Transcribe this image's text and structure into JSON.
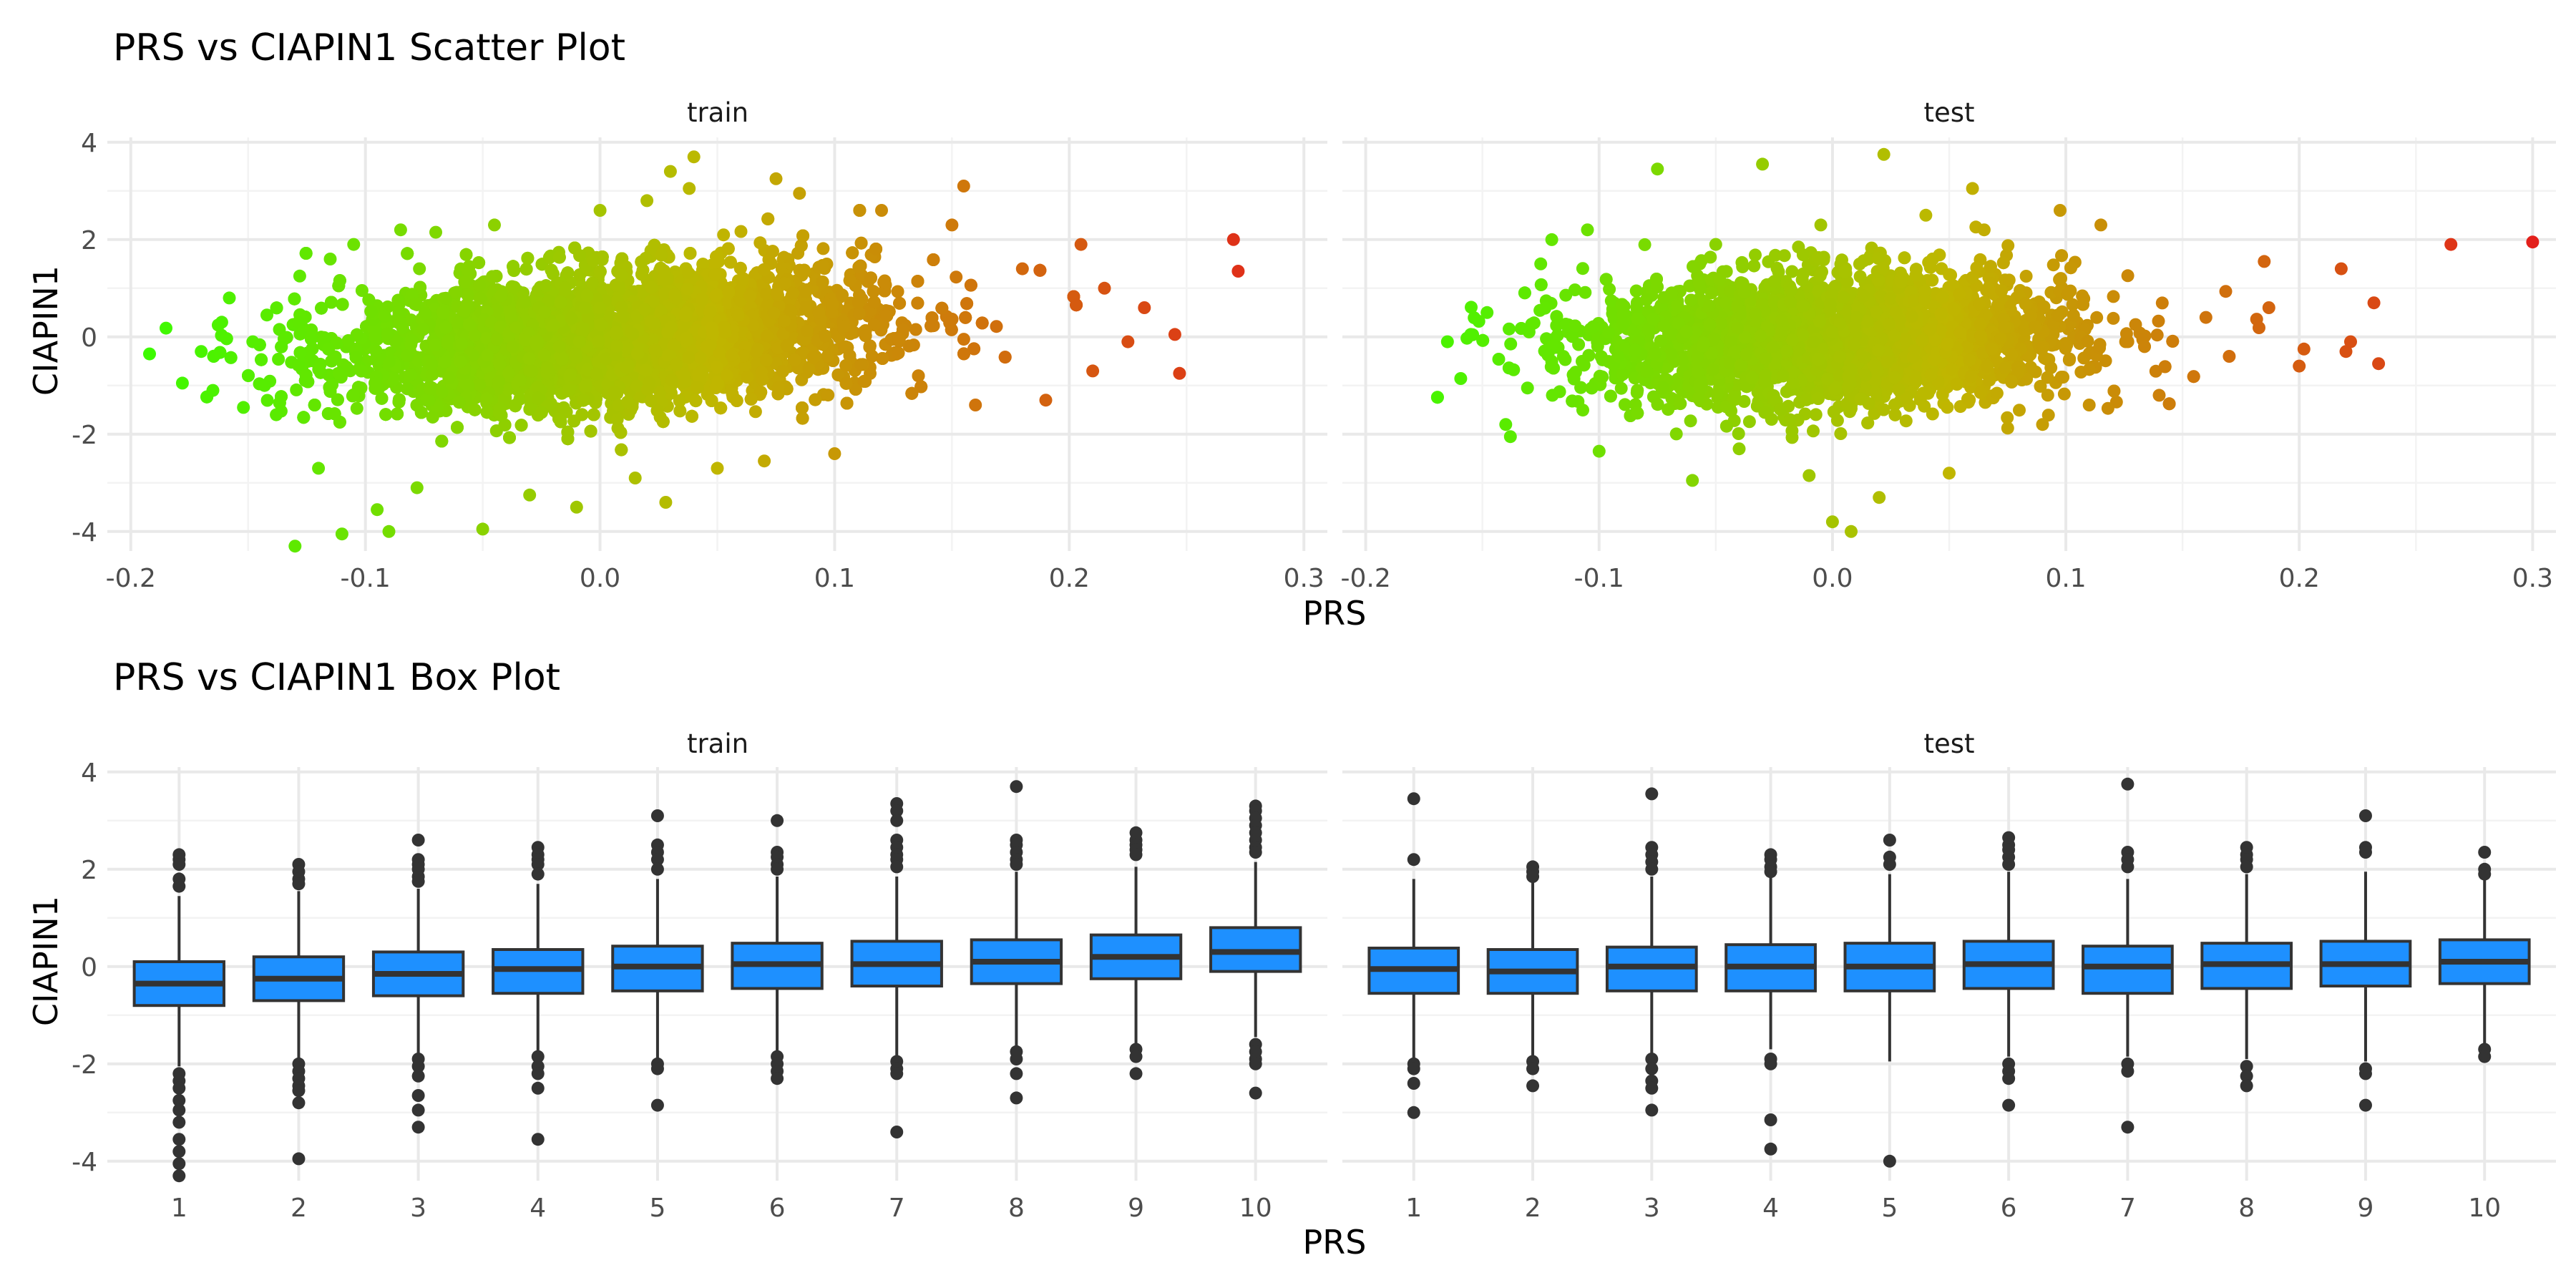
{
  "chart_data": [
    {
      "type": "scatter",
      "title": "PRS vs CIAPIN1 Scatter Plot",
      "xlabel": "PRS",
      "ylabel": "CIAPIN1",
      "facets": [
        "train",
        "test"
      ],
      "xlim": [
        -0.21,
        0.31
      ],
      "ylim": [
        -4.4,
        4.1
      ],
      "x_ticks": [
        -0.2,
        -0.1,
        0.0,
        0.1,
        0.2,
        0.3
      ],
      "x_tick_labels": [
        "-0.2",
        "-0.1",
        "0.0",
        "0.1",
        "0.2",
        "0.3"
      ],
      "y_ticks": [
        -4,
        -2,
        0,
        2,
        4
      ],
      "y_tick_labels": [
        "-4",
        "-2",
        "0",
        "2",
        "4"
      ],
      "color_scale": {
        "low": "#33ff00",
        "mid": "#c0b600",
        "high": "#e41a1c",
        "mapped_to": "PRS"
      },
      "grid": true,
      "legend": "none",
      "points": {
        "train": [
          [
            -0.192,
            -0.35
          ],
          [
            -0.185,
            0.18
          ],
          [
            -0.178,
            -0.95
          ],
          [
            -0.17,
            -0.3
          ],
          [
            -0.165,
            -1.1
          ],
          [
            -0.158,
            0.8
          ],
          [
            -0.152,
            -1.45
          ],
          [
            -0.148,
            -0.1
          ],
          [
            -0.142,
            0.45
          ],
          [
            -0.138,
            -1.6
          ],
          [
            -0.13,
            -4.3
          ],
          [
            -0.128,
            1.25
          ],
          [
            -0.12,
            -2.7
          ],
          [
            -0.115,
            1.6
          ],
          [
            -0.11,
            -4.05
          ],
          [
            -0.105,
            1.9
          ],
          [
            -0.095,
            -3.55
          ],
          [
            -0.09,
            -4.0
          ],
          [
            -0.085,
            2.2
          ],
          [
            -0.078,
            -3.1
          ],
          [
            -0.07,
            2.15
          ],
          [
            -0.05,
            -3.95
          ],
          [
            -0.045,
            2.3
          ],
          [
            -0.03,
            -3.25
          ],
          [
            -0.01,
            -3.5
          ],
          [
            0.0,
            2.6
          ],
          [
            0.015,
            -2.9
          ],
          [
            0.02,
            2.8
          ],
          [
            0.028,
            -3.4
          ],
          [
            0.03,
            3.4
          ],
          [
            0.038,
            3.05
          ],
          [
            0.04,
            3.7
          ],
          [
            0.05,
            -2.7
          ],
          [
            0.07,
            -2.55
          ],
          [
            0.075,
            3.25
          ],
          [
            0.085,
            2.95
          ],
          [
            0.1,
            -2.4
          ],
          [
            0.12,
            2.6
          ],
          [
            0.15,
            2.3
          ],
          [
            0.155,
            3.1
          ],
          [
            0.16,
            -1.4
          ],
          [
            0.18,
            1.4
          ],
          [
            0.19,
            -1.3
          ],
          [
            0.205,
            1.9
          ],
          [
            0.21,
            -0.7
          ],
          [
            0.215,
            1.0
          ],
          [
            0.225,
            -0.1
          ],
          [
            0.232,
            0.6
          ],
          [
            0.245,
            0.05
          ],
          [
            0.247,
            -0.75
          ],
          [
            0.27,
            2.0
          ],
          [
            0.272,
            1.35
          ]
        ],
        "test": [
          [
            -0.165,
            -0.1
          ],
          [
            -0.155,
            0.05
          ],
          [
            -0.148,
            0.5
          ],
          [
            -0.14,
            -1.8
          ],
          [
            -0.138,
            -2.05
          ],
          [
            -0.125,
            1.5
          ],
          [
            -0.12,
            -1.2
          ],
          [
            -0.105,
            2.2
          ],
          [
            -0.1,
            -2.35
          ],
          [
            -0.075,
            3.45
          ],
          [
            -0.06,
            -2.95
          ],
          [
            -0.05,
            1.9
          ],
          [
            -0.04,
            -2.3
          ],
          [
            -0.03,
            3.55
          ],
          [
            -0.01,
            -2.85
          ],
          [
            -0.005,
            2.3
          ],
          [
            0.0,
            -3.8
          ],
          [
            0.008,
            -4.0
          ],
          [
            0.02,
            -3.3
          ],
          [
            0.022,
            3.75
          ],
          [
            0.04,
            2.5
          ],
          [
            0.05,
            -2.8
          ],
          [
            0.06,
            3.05
          ],
          [
            0.065,
            2.2
          ],
          [
            0.09,
            -1.8
          ],
          [
            0.11,
            -1.4
          ],
          [
            0.115,
            2.3
          ],
          [
            0.14,
            -1.2
          ],
          [
            0.16,
            0.4
          ],
          [
            0.17,
            -0.4
          ],
          [
            0.185,
            1.55
          ],
          [
            0.187,
            0.6
          ],
          [
            0.2,
            -0.6
          ],
          [
            0.202,
            -0.25
          ],
          [
            0.218,
            1.4
          ],
          [
            0.22,
            -0.3
          ],
          [
            0.222,
            -0.1
          ],
          [
            0.232,
            0.7
          ],
          [
            0.234,
            -0.55
          ],
          [
            0.265,
            1.9
          ],
          [
            0.3,
            1.95
          ]
        ]
      },
      "bulk": {
        "train": {
          "n": 8000,
          "x_center": 0.005,
          "x_sd": 0.065,
          "y_intercept": -0.05,
          "y_slope": 3.2,
          "y_sd": 0.8
        },
        "test": {
          "n": 3400,
          "x_center": 0.0,
          "x_sd": 0.06,
          "y_intercept": -0.05,
          "y_slope": 1.0,
          "y_sd": 0.8
        }
      }
    },
    {
      "type": "box",
      "title": "PRS vs CIAPIN1 Box Plot",
      "xlabel": "PRS",
      "ylabel": "CIAPIN1",
      "facets": [
        "train",
        "test"
      ],
      "categories": [
        "1",
        "2",
        "3",
        "4",
        "5",
        "6",
        "7",
        "8",
        "9",
        "10"
      ],
      "ylim": [
        -4.4,
        4.1
      ],
      "y_ticks": [
        -4,
        -2,
        0,
        2,
        4
      ],
      "y_tick_labels": [
        "-4",
        "-2",
        "0",
        "2",
        "4"
      ],
      "box_fill": "#1e90ff",
      "box_stroke": "#333333",
      "grid": true,
      "legend": "none",
      "boxes": {
        "train": [
          {
            "q1": -0.8,
            "median": -0.35,
            "q3": 0.1,
            "lo": -2.05,
            "hi": 1.45,
            "outliers": [
              2.3,
              2.2,
              2.1,
              1.8,
              1.65,
              -2.2,
              -2.35,
              -2.5,
              -2.75,
              -2.95,
              -3.2,
              -3.55,
              -3.8,
              -4.05,
              -4.3
            ]
          },
          {
            "q1": -0.7,
            "median": -0.25,
            "q3": 0.2,
            "lo": -1.9,
            "hi": 1.55,
            "outliers": [
              2.1,
              1.95,
              1.8,
              1.7,
              -2.0,
              -2.15,
              -2.3,
              -2.45,
              -2.55,
              -2.8,
              -3.95
            ]
          },
          {
            "q1": -0.6,
            "median": -0.15,
            "q3": 0.3,
            "lo": -1.8,
            "hi": 1.6,
            "outliers": [
              2.6,
              2.2,
              2.1,
              2.0,
              1.85,
              1.75,
              -1.9,
              -2.05,
              -2.25,
              -2.65,
              -2.95,
              -3.3
            ]
          },
          {
            "q1": -0.55,
            "median": -0.05,
            "q3": 0.35,
            "lo": -1.75,
            "hi": 1.7,
            "outliers": [
              2.45,
              2.3,
              2.2,
              2.1,
              1.9,
              -1.85,
              -2.05,
              -2.2,
              -2.5,
              -3.55
            ]
          },
          {
            "q1": -0.5,
            "median": 0.0,
            "q3": 0.42,
            "lo": -1.9,
            "hi": 1.8,
            "outliers": [
              3.1,
              2.5,
              2.35,
              2.2,
              2.0,
              -2.0,
              -2.1,
              -2.85
            ]
          },
          {
            "q1": -0.45,
            "median": 0.05,
            "q3": 0.48,
            "lo": -1.75,
            "hi": 1.85,
            "outliers": [
              3.0,
              2.35,
              2.25,
              2.1,
              2.0,
              -1.85,
              -2.0,
              -2.15,
              -2.3
            ]
          },
          {
            "q1": -0.4,
            "median": 0.05,
            "q3": 0.52,
            "lo": -1.85,
            "hi": 1.85,
            "outliers": [
              3.35,
              3.2,
              3.0,
              2.6,
              2.45,
              2.3,
              2.2,
              2.05,
              -1.95,
              -2.1,
              -2.2,
              -3.4
            ]
          },
          {
            "q1": -0.35,
            "median": 0.1,
            "q3": 0.55,
            "lo": -1.65,
            "hi": 1.95,
            "outliers": [
              3.7,
              2.6,
              2.5,
              2.35,
              2.2,
              2.1,
              -1.75,
              -1.9,
              -2.2,
              -2.7
            ]
          },
          {
            "q1": -0.25,
            "median": 0.2,
            "q3": 0.65,
            "lo": -1.6,
            "hi": 2.05,
            "outliers": [
              2.75,
              2.6,
              2.5,
              2.4,
              2.3,
              -1.7,
              -1.85,
              -2.2
            ]
          },
          {
            "q1": -0.1,
            "median": 0.3,
            "q3": 0.8,
            "lo": -1.45,
            "hi": 2.15,
            "outliers": [
              3.3,
              3.2,
              3.05,
              2.9,
              2.75,
              2.6,
              2.45,
              2.35,
              -1.6,
              -1.75,
              -1.9,
              -2.0,
              -2.6
            ]
          }
        ],
        "test": [
          {
            "q1": -0.55,
            "median": -0.05,
            "q3": 0.38,
            "lo": -1.9,
            "hi": 1.8,
            "outliers": [
              3.45,
              2.2,
              -2.0,
              -2.1,
              -2.4,
              -3.0
            ]
          },
          {
            "q1": -0.55,
            "median": -0.1,
            "q3": 0.35,
            "lo": -1.85,
            "hi": 1.75,
            "outliers": [
              2.05,
              1.95,
              1.85,
              -1.95,
              -2.1,
              -2.45
            ]
          },
          {
            "q1": -0.5,
            "median": 0.0,
            "q3": 0.4,
            "lo": -1.8,
            "hi": 1.85,
            "outliers": [
              3.55,
              2.45,
              2.3,
              2.15,
              2.0,
              -1.9,
              -2.1,
              -2.35,
              -2.5,
              -2.95
            ]
          },
          {
            "q1": -0.5,
            "median": 0.0,
            "q3": 0.45,
            "lo": -1.7,
            "hi": 1.85,
            "outliers": [
              2.3,
              2.2,
              2.05,
              1.95,
              -1.9,
              -2.0,
              -3.15,
              -3.75
            ]
          },
          {
            "q1": -0.5,
            "median": 0.0,
            "q3": 0.48,
            "lo": -1.95,
            "hi": 1.9,
            "outliers": [
              2.6,
              2.25,
              2.1,
              -4.0
            ]
          },
          {
            "q1": -0.45,
            "median": 0.05,
            "q3": 0.52,
            "lo": -1.85,
            "hi": 1.95,
            "outliers": [
              2.65,
              2.5,
              2.4,
              2.25,
              2.1,
              -2.0,
              -2.15,
              -2.3,
              -2.85
            ]
          },
          {
            "q1": -0.55,
            "median": 0.0,
            "q3": 0.42,
            "lo": -1.85,
            "hi": 1.8,
            "outliers": [
              3.75,
              2.35,
              2.2,
              2.05,
              -2.0,
              -2.15,
              -3.3
            ]
          },
          {
            "q1": -0.45,
            "median": 0.05,
            "q3": 0.48,
            "lo": -1.9,
            "hi": 1.9,
            "outliers": [
              2.45,
              2.3,
              2.2,
              2.05,
              -2.05,
              -2.25,
              -2.45
            ]
          },
          {
            "q1": -0.4,
            "median": 0.05,
            "q3": 0.52,
            "lo": -1.95,
            "hi": 1.95,
            "outliers": [
              3.1,
              2.45,
              2.35,
              -2.1,
              -2.2,
              -2.85
            ]
          },
          {
            "q1": -0.35,
            "median": 0.1,
            "q3": 0.55,
            "lo": -1.6,
            "hi": 2.0,
            "outliers": [
              2.35,
              2.0,
              1.9,
              -1.7,
              -1.85
            ]
          }
        ]
      }
    }
  ]
}
